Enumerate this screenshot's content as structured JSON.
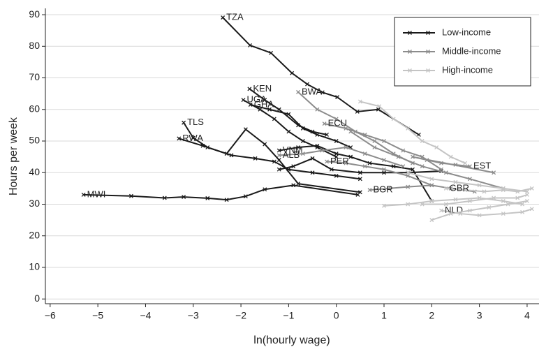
{
  "chart_data": {
    "type": "line",
    "x_label": "ln(hourly wage)",
    "y_label": "Hours per week",
    "xlim": [
      -6.1,
      4.25
    ],
    "ylim": [
      -1.5,
      92
    ],
    "xticks": [
      {
        "value": -6,
        "label": "−6"
      },
      {
        "value": -5,
        "label": "−5"
      },
      {
        "value": -4,
        "label": "−4"
      },
      {
        "value": -3,
        "label": "−3"
      },
      {
        "value": -2,
        "label": "−2"
      },
      {
        "value": -1,
        "label": "−1"
      },
      0,
      1,
      2,
      3,
      4
    ],
    "yticks": [
      0,
      10,
      20,
      30,
      40,
      50,
      60,
      70,
      80,
      90
    ],
    "grid": true,
    "legend_position": "upper right",
    "series": [
      {
        "name": "Low-income",
        "color": "#1a1a1a",
        "lines": [
          {
            "label": "TZA",
            "x": [
              -2.38,
              -1.81,
              -1.37,
              -0.93,
              -0.61,
              -0.29,
              0.02,
              0.44,
              0.88,
              1.73
            ],
            "y": [
              89.1,
              80.3,
              77.9,
              71.5,
              68.0,
              65.4,
              63.9,
              59.3,
              60.0,
              52.0
            ]
          },
          {
            "label": "KEN",
            "x": [
              -1.82,
              -1.5,
              -1.2,
              -0.8,
              -0.5,
              -0.2
            ],
            "y": [
              66.5,
              63,
              60,
              55,
              53,
              52
            ]
          },
          {
            "label": "UGA",
            "x": [
              -1.95,
              -1.6,
              -1.3,
              -1.0,
              -0.7,
              -0.4,
              0
            ],
            "y": [
              63,
              60,
              57,
              53,
              50,
              48,
              45
            ]
          },
          {
            "label": "GHA",
            "x": [
              -1.8,
              -1.4,
              -1.0,
              -0.7,
              -0.4,
              0,
              0.3
            ],
            "y": [
              61.5,
              60,
              58.5,
              54,
              52,
              50,
              48
            ]
          },
          {
            "label": "TLS",
            "x": [
              -3.2,
              -3.0,
              -2.7,
              -2.3,
              -1.9,
              -1.5,
              -1.2,
              -0.8,
              0.5
            ],
            "y": [
              55.8,
              51,
              48,
              46,
              53.7,
              49,
              44,
              36.5,
              33.8
            ]
          },
          {
            "label": "RWA",
            "x": [
              -3.3,
              -2.8,
              -2.2,
              -1.7,
              -1.3,
              -1.0,
              -0.5,
              0,
              0.5
            ],
            "y": [
              50.8,
              48.5,
              45.5,
              44.5,
              43.5,
              41,
              40,
              39,
              38
            ]
          },
          {
            "label": "MWI",
            "x": [
              -5.3,
              -4.3,
              -3.6,
              -3.2,
              -2.7,
              -2.3,
              -1.9,
              -1.5,
              -0.9,
              0.45
            ],
            "y": [
              33,
              32.6,
              32,
              32.3,
              31.9,
              31.4,
              32.5,
              34.7,
              36,
              33
            ]
          },
          {
            "label": "VNM",
            "x": [
              -1.2,
              -0.8,
              -0.4,
              0,
              0.3,
              0.7,
              1.2,
              1.6,
              2.0
            ],
            "y": [
              47,
              48,
              48.5,
              46,
              45,
              43,
              42,
              41,
              31
            ]
          },
          {
            "label": null,
            "x": [
              -1.2,
              -0.9,
              -0.5,
              -0.1,
              0.5,
              1.0,
              1.5,
              2.2
            ],
            "y": [
              41,
              42,
              44.5,
              41,
              40,
              40,
              40,
              40.5
            ]
          }
        ]
      },
      {
        "name": "Middle-income",
        "color": "#8c8c8c",
        "lines": [
          {
            "label": "BWA",
            "x": [
              -0.8,
              -0.4,
              0,
              0.4,
              0.8,
              1.2,
              1.6
            ],
            "y": [
              65.5,
              60,
              57,
              53,
              50,
              46,
              43
            ]
          },
          {
            "label": "ECU",
            "x": [
              -0.25,
              0.2,
              0.6,
              1.0,
              1.4,
              1.8,
              2.2
            ],
            "y": [
              55.5,
              54,
              52,
              50,
              47,
              45,
              41
            ]
          },
          {
            "label": "ALB",
            "x": [
              -1.2,
              -0.7,
              -0.3,
              0.2,
              0.6,
              1.0,
              1.4
            ],
            "y": [
              45.5,
              46,
              47,
              48,
              46,
              44,
              42
            ]
          },
          {
            "label": "PER",
            "x": [
              -0.2,
              0.2,
              0.6,
              1.0,
              1.5,
              2.0
            ],
            "y": [
              43.5,
              43,
              42,
              41,
              39,
              36
            ]
          },
          {
            "label": "BGR",
            "x": [
              0.7,
              1.1,
              1.5,
              2.0,
              2.4,
              2.9
            ],
            "y": [
              34.5,
              35,
              35.5,
              36,
              35,
              34
            ]
          },
          {
            "label": "EST",
            "x": [
              2.8,
              2.5,
              2.2,
              1.9,
              1.6,
              3.3
            ],
            "y": [
              42,
              42.5,
              43,
              44,
              45,
              40
            ]
          },
          {
            "label": null,
            "x": [
              0.3,
              0.8,
              1.3,
              1.8,
              2.3,
              2.8,
              3.5
            ],
            "y": [
              53,
              48,
              45,
              42,
              40,
              38,
              35
            ]
          }
        ]
      },
      {
        "name": "High-income",
        "color": "#c4c4c4",
        "lines": [
          {
            "label": null,
            "x": [
              0.5,
              0.9,
              1.2,
              1.5,
              1.8,
              2.1,
              2.4,
              2.7
            ],
            "y": [
              62.5,
              61,
              57,
              54,
              50,
              48,
              45,
              43
            ]
          },
          {
            "label": "NLD",
            "x": [
              2.2,
              2.6,
              3.0,
              3.5,
              3.9,
              4.1
            ],
            "y": [
              28,
              27,
              26.5,
              27,
              27.5,
              28.5
            ]
          },
          {
            "label": "GBR",
            "x": [
              2.3,
              2.7,
              3.1,
              3.5,
              3.8,
              4.1
            ],
            "y": [
              35,
              34.5,
              34,
              34.5,
              34,
              35
            ]
          },
          {
            "label": null,
            "x": [
              1.8,
              2.3,
              2.8,
              3.3,
              3.8,
              4.0
            ],
            "y": [
              30,
              30,
              31,
              32,
              32,
              33
            ]
          },
          {
            "label": null,
            "x": [
              2.0,
              2.4,
              2.8,
              3.2,
              3.6,
              4.0
            ],
            "y": [
              25,
              27,
              28,
              29,
              30,
              31
            ]
          },
          {
            "label": null,
            "x": [
              1.0,
              1.5,
              2.0,
              2.5,
              3.0,
              3.5,
              3.9
            ],
            "y": [
              29.5,
              30,
              31,
              31.5,
              32,
              31,
              30
            ]
          },
          {
            "label": null,
            "x": [
              1.5,
              2.0,
              2.5,
              3.0,
              3.5,
              4.0
            ],
            "y": [
              40,
              38,
              37,
              36,
              35,
              34
            ]
          }
        ]
      }
    ]
  }
}
